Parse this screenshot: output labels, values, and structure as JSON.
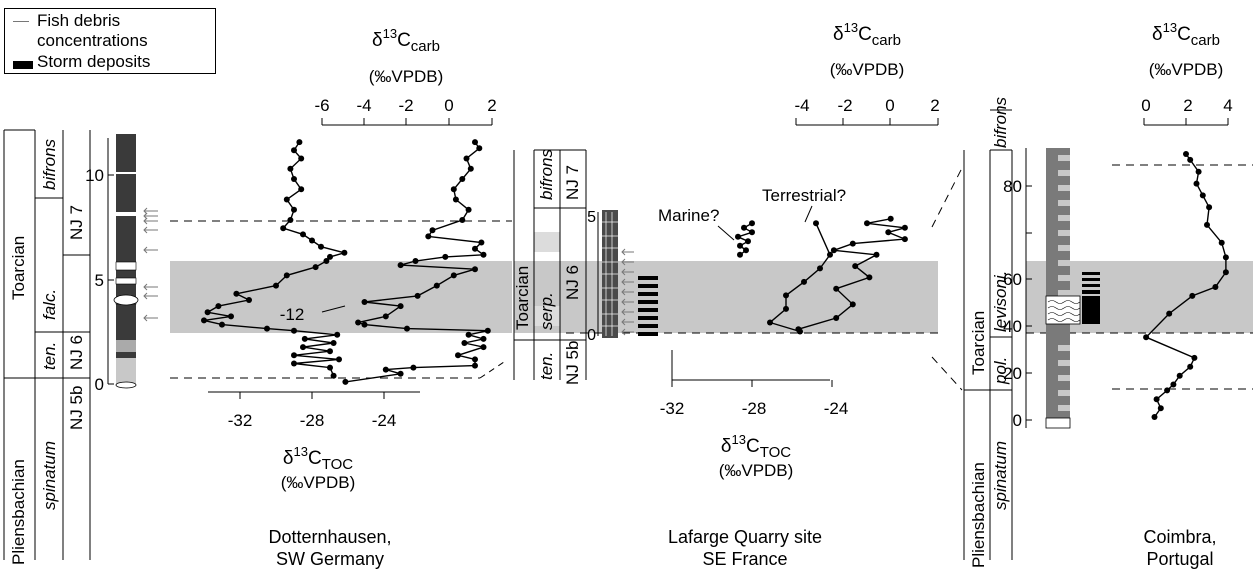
{
  "legend": {
    "fish_label_1": "Fish debris",
    "fish_label_2": "concentrations",
    "storm_label": "Storm deposits"
  },
  "locations": {
    "dotternhausen": [
      "Dotternhausen,",
      "SW Germany"
    ],
    "lafarge": [
      "Lafarge Quarry site",
      "SE France"
    ],
    "coimbra": [
      "Coimbra,",
      "Portugal"
    ]
  },
  "axis_labels": {
    "carb_main": "δ13Ccarb",
    "carb_unit": "(‰VPDB)",
    "toc_main": "δ13CTOC",
    "toc_unit": "(‰VPDB)"
  },
  "stratigraphy": {
    "stages": [
      "Pliensbachian",
      "Toarcian"
    ],
    "zones": [
      "spinatum",
      "ten.",
      "falc.",
      "bifrons",
      "serp.",
      "pol.",
      "levisoni."
    ],
    "nanno_zones": [
      "NJ 5b",
      "NJ 6",
      "NJ 7"
    ]
  },
  "annotations": {
    "marine": "Marine?",
    "terrestrial": "Terrestrial?",
    "minus12": "-12"
  },
  "chart_data": [
    {
      "type": "line",
      "title": "Dotternhausen, SW Germany",
      "x_toc_ticks": [
        "-32",
        "-28",
        "-24"
      ],
      "x_carb_ticks": [
        "-6",
        "-4",
        "-2",
        "0",
        "2"
      ],
      "y_ticks": [
        "0",
        "5",
        "10"
      ],
      "xlim_toc": [
        -34,
        -20
      ],
      "xlim_carb": [
        -6,
        2
      ],
      "ylim": [
        0,
        12
      ],
      "series": [
        {
          "role": "toc",
          "points": [
            [
              -26.8,
              0.4
            ],
            [
              -27.0,
              0.8
            ],
            [
              -29.0,
              1.0
            ],
            [
              -26.5,
              1.2
            ],
            [
              -29.0,
              1.4
            ],
            [
              -27.0,
              1.6
            ],
            [
              -28.5,
              1.8
            ],
            [
              -26.8,
              2.0
            ],
            [
              -28.4,
              2.2
            ],
            [
              -26.6,
              2.4
            ],
            [
              -29.0,
              2.6
            ],
            [
              -30.5,
              2.7
            ],
            [
              -33.0,
              2.9
            ],
            [
              -34.0,
              3.1
            ],
            [
              -32.5,
              3.3
            ],
            [
              -33.8,
              3.5
            ],
            [
              -33.2,
              3.8
            ],
            [
              -31.5,
              4.1
            ],
            [
              -32.2,
              4.4
            ],
            [
              -30.0,
              4.8
            ],
            [
              -29.4,
              5.3
            ],
            [
              -27.8,
              5.7
            ],
            [
              -27.2,
              6.0
            ],
            [
              -27.0,
              6.2
            ],
            [
              -26.2,
              6.4
            ],
            [
              -27.5,
              6.7
            ],
            [
              -28.0,
              7.0
            ],
            [
              -28.5,
              7.3
            ],
            [
              -29.6,
              7.6
            ],
            [
              -29.2,
              8.0
            ],
            [
              -29.0,
              8.5
            ],
            [
              -29.4,
              9.0
            ],
            [
              -28.6,
              9.5
            ],
            [
              -29.0,
              10.0
            ],
            [
              -29.2,
              10.5
            ],
            [
              -28.6,
              11.0
            ],
            [
              -29.0,
              11.4
            ],
            [
              -28.7,
              11.8
            ]
          ]
        },
        {
          "role": "carb",
          "points": [
            [
              -4.9,
              0.1
            ],
            [
              -2.3,
              0.5
            ],
            [
              -3.0,
              0.7
            ],
            [
              -1.7,
              0.8
            ],
            [
              1.2,
              0.9
            ],
            [
              1.2,
              1.2
            ],
            [
              0.4,
              1.4
            ],
            [
              1.6,
              1.8
            ],
            [
              0.7,
              2.0
            ],
            [
              1.6,
              2.2
            ],
            [
              0.9,
              2.4
            ],
            [
              1.8,
              2.6
            ],
            [
              -2.0,
              2.7
            ],
            [
              -4.0,
              2.9
            ],
            [
              -4.3,
              3.0
            ],
            [
              -3.0,
              3.3
            ],
            [
              -2.3,
              3.8
            ],
            [
              -4.0,
              4.0
            ],
            [
              -1.5,
              4.3
            ],
            [
              -0.6,
              4.8
            ],
            [
              0.2,
              5.3
            ],
            [
              1.2,
              5.6
            ],
            [
              -2.3,
              5.8
            ],
            [
              -1.6,
              6.0
            ],
            [
              -0.2,
              6.2
            ],
            [
              1.6,
              6.3
            ],
            [
              1.2,
              6.6
            ],
            [
              1.5,
              6.9
            ],
            [
              -1.0,
              7.2
            ],
            [
              -0.8,
              7.5
            ],
            [
              0.6,
              8.0
            ],
            [
              0.9,
              8.5
            ],
            [
              0.3,
              9.0
            ],
            [
              0.2,
              9.5
            ],
            [
              0.6,
              10.0
            ],
            [
              1.0,
              10.5
            ],
            [
              0.8,
              11.0
            ],
            [
              1.4,
              11.5
            ],
            [
              1.2,
              11.8
            ]
          ]
        }
      ]
    },
    {
      "type": "line",
      "title": "Lafarge Quarry site SE France",
      "x_toc_ticks": [
        "-32",
        "-28",
        "-24"
      ],
      "x_carb_ticks": [
        "-4",
        "-2",
        "0",
        "2"
      ],
      "y_ticks": [
        "0",
        "5"
      ],
      "xlim_toc": [
        -32,
        -23
      ],
      "xlim_carb": [
        -4,
        2
      ],
      "ylim": [
        0,
        5.5
      ],
      "series": [
        {
          "role": "toc_marine",
          "points": [
            [
              -28.6,
              3.6
            ],
            [
              -28.3,
              3.8
            ],
            [
              -28.6,
              4.0
            ],
            [
              -28.2,
              4.2
            ],
            [
              -28.7,
              4.4
            ],
            [
              -28.0,
              4.6
            ],
            [
              -28.4,
              4.8
            ],
            [
              -28.0,
              5.0
            ]
          ]
        },
        {
          "role": "toc_terrestrial",
          "points": [
            [
              -25.6,
              0.2
            ],
            [
              -27.1,
              0.6
            ],
            [
              -26.3,
              1.2
            ],
            [
              -26.3,
              1.8
            ],
            [
              -25.4,
              2.4
            ],
            [
              -24.6,
              3.0
            ],
            [
              -24.1,
              3.6
            ],
            [
              -24.8,
              5.0
            ]
          ]
        },
        {
          "role": "carb",
          "points": [
            [
              -3.9,
              0.3
            ],
            [
              -2.3,
              0.8
            ],
            [
              -1.6,
              1.4
            ],
            [
              -2.3,
              2.1
            ],
            [
              -0.9,
              2.6
            ],
            [
              -1.5,
              3.1
            ],
            [
              -0.6,
              3.6
            ],
            [
              -2.4,
              3.8
            ],
            [
              -1.6,
              4.1
            ],
            [
              0.6,
              4.3
            ],
            [
              -0.1,
              4.6
            ],
            [
              0.6,
              4.8
            ],
            [
              -1.0,
              5.0
            ],
            [
              0.0,
              5.2
            ]
          ]
        }
      ]
    },
    {
      "type": "line",
      "title": "Coimbra, Portugal",
      "x_carb_ticks": [
        "0",
        "2",
        "4"
      ],
      "y_ticks": [
        "0",
        "20",
        "40",
        "60",
        "80"
      ],
      "xlim_carb": [
        0,
        4
      ],
      "ylim": [
        0,
        90
      ],
      "series": [
        {
          "role": "carb",
          "points": [
            [
              0.5,
              1
            ],
            [
              0.8,
              4
            ],
            [
              0.6,
              7
            ],
            [
              1.1,
              10
            ],
            [
              1.4,
              12
            ],
            [
              1.7,
              15
            ],
            [
              2.2,
              18
            ],
            [
              2.4,
              21
            ],
            [
              0.1,
              28
            ],
            [
              1.2,
              36
            ],
            [
              2.3,
              42
            ],
            [
              3.4,
              45
            ],
            [
              3.9,
              50
            ],
            [
              3.9,
              55
            ],
            [
              3.7,
              60
            ],
            [
              3.0,
              66
            ],
            [
              3.1,
              72
            ],
            [
              2.8,
              76
            ],
            [
              2.5,
              80
            ],
            [
              2.6,
              84
            ],
            [
              2.2,
              88
            ],
            [
              2.0,
              90
            ]
          ]
        }
      ]
    }
  ]
}
